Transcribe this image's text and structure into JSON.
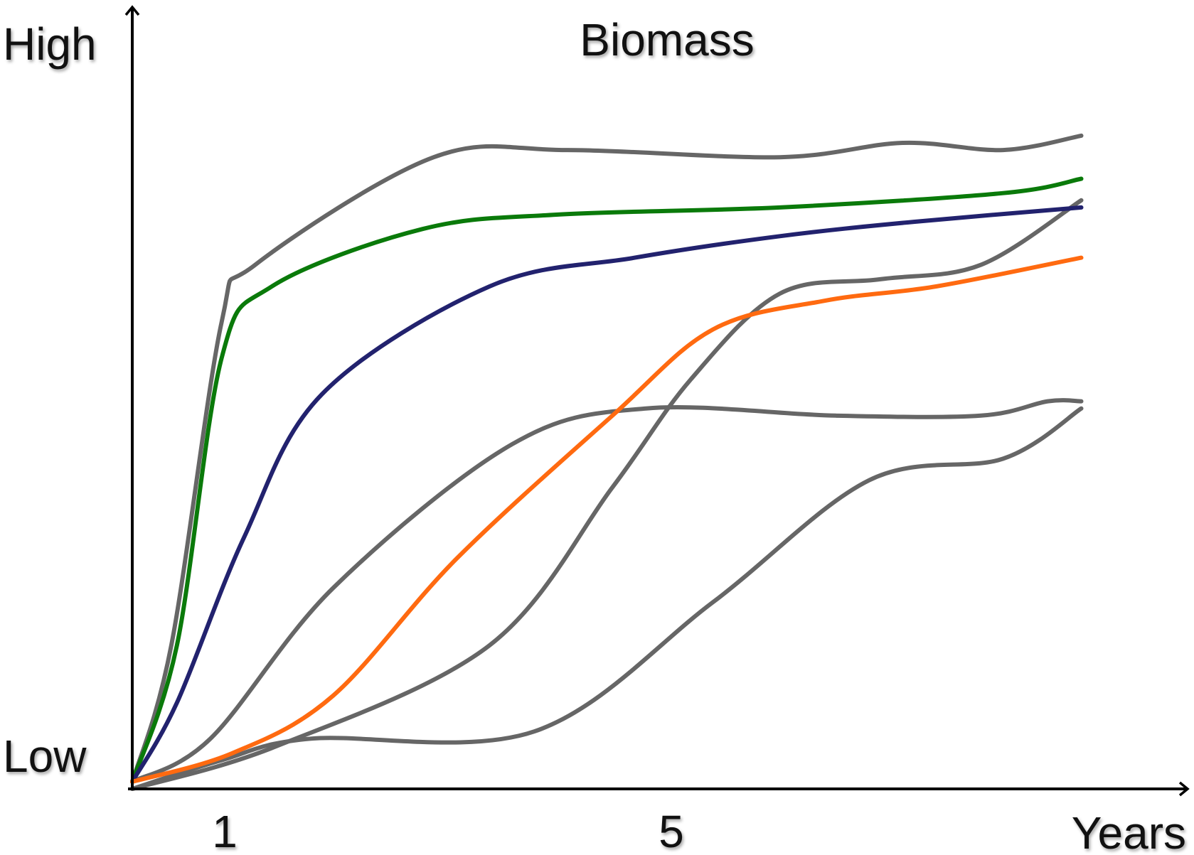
{
  "chart_data": {
    "type": "line",
    "title": "Biomass",
    "xlabel": "Years",
    "ylabel": "",
    "y_tick_labels": {
      "high": "High",
      "low": "Low"
    },
    "x_ticks": [
      {
        "value": 1,
        "label": "1"
      },
      {
        "value": 5,
        "label": "5"
      }
    ],
    "xlim": [
      0,
      10
    ],
    "ylim": [
      0,
      100
    ],
    "grid": false,
    "legend": "none",
    "colors": {
      "axis": "#000000",
      "gray": "#666666",
      "green": "#0a7a0a",
      "navy": "#22226e",
      "orange": "#ff6a10"
    },
    "series": [
      {
        "color": "gray",
        "points": [
          [
            0,
            1
          ],
          [
            0.35,
            20
          ],
          [
            0.8,
            65
          ],
          [
            1.1,
            73
          ],
          [
            2.7,
            88
          ],
          [
            3.9,
            89
          ],
          [
            5.8,
            88
          ],
          [
            6.9,
            90
          ],
          [
            7.8,
            89
          ],
          [
            8.5,
            91
          ]
        ]
      },
      {
        "color": "green",
        "points": [
          [
            0,
            1
          ],
          [
            0.4,
            20
          ],
          [
            0.8,
            60
          ],
          [
            1.25,
            70
          ],
          [
            2.6,
            78
          ],
          [
            3.8,
            80
          ],
          [
            5.8,
            81
          ],
          [
            7.8,
            83
          ],
          [
            8.5,
            85
          ]
        ]
      },
      {
        "color": "navy",
        "points": [
          [
            0,
            1
          ],
          [
            0.4,
            12
          ],
          [
            1.0,
            35
          ],
          [
            1.7,
            55
          ],
          [
            3.2,
            70
          ],
          [
            4.5,
            74
          ],
          [
            5.8,
            77
          ],
          [
            7.0,
            79
          ],
          [
            8.5,
            81
          ]
        ]
      },
      {
        "color": "orange",
        "points": [
          [
            0,
            1
          ],
          [
            0.9,
            5
          ],
          [
            1.8,
            13
          ],
          [
            2.9,
            32
          ],
          [
            4.3,
            52
          ],
          [
            5.2,
            64
          ],
          [
            6.2,
            68
          ],
          [
            7.2,
            70
          ],
          [
            8.5,
            74
          ]
        ]
      },
      {
        "color": "gray",
        "points": [
          [
            0,
            1
          ],
          [
            0.7,
            7
          ],
          [
            1.8,
            28
          ],
          [
            3.4,
            48
          ],
          [
            4.6,
            53
          ],
          [
            6.3,
            52
          ],
          [
            7.6,
            52
          ],
          [
            8.2,
            54
          ],
          [
            8.5,
            54
          ]
        ]
      },
      {
        "color": "gray",
        "points": [
          [
            0,
            0
          ],
          [
            1.3,
            6
          ],
          [
            3.2,
            20
          ],
          [
            4.3,
            42
          ],
          [
            5.0,
            57
          ],
          [
            5.8,
            69
          ],
          [
            6.7,
            71
          ],
          [
            7.6,
            73
          ],
          [
            8.5,
            82
          ]
        ]
      },
      {
        "color": "gray",
        "points": [
          [
            0,
            0
          ],
          [
            0.8,
            4
          ],
          [
            1.6,
            7
          ],
          [
            3.6,
            8
          ],
          [
            5.2,
            26
          ],
          [
            6.6,
            43
          ],
          [
            7.8,
            46
          ],
          [
            8.5,
            53
          ]
        ]
      }
    ]
  }
}
